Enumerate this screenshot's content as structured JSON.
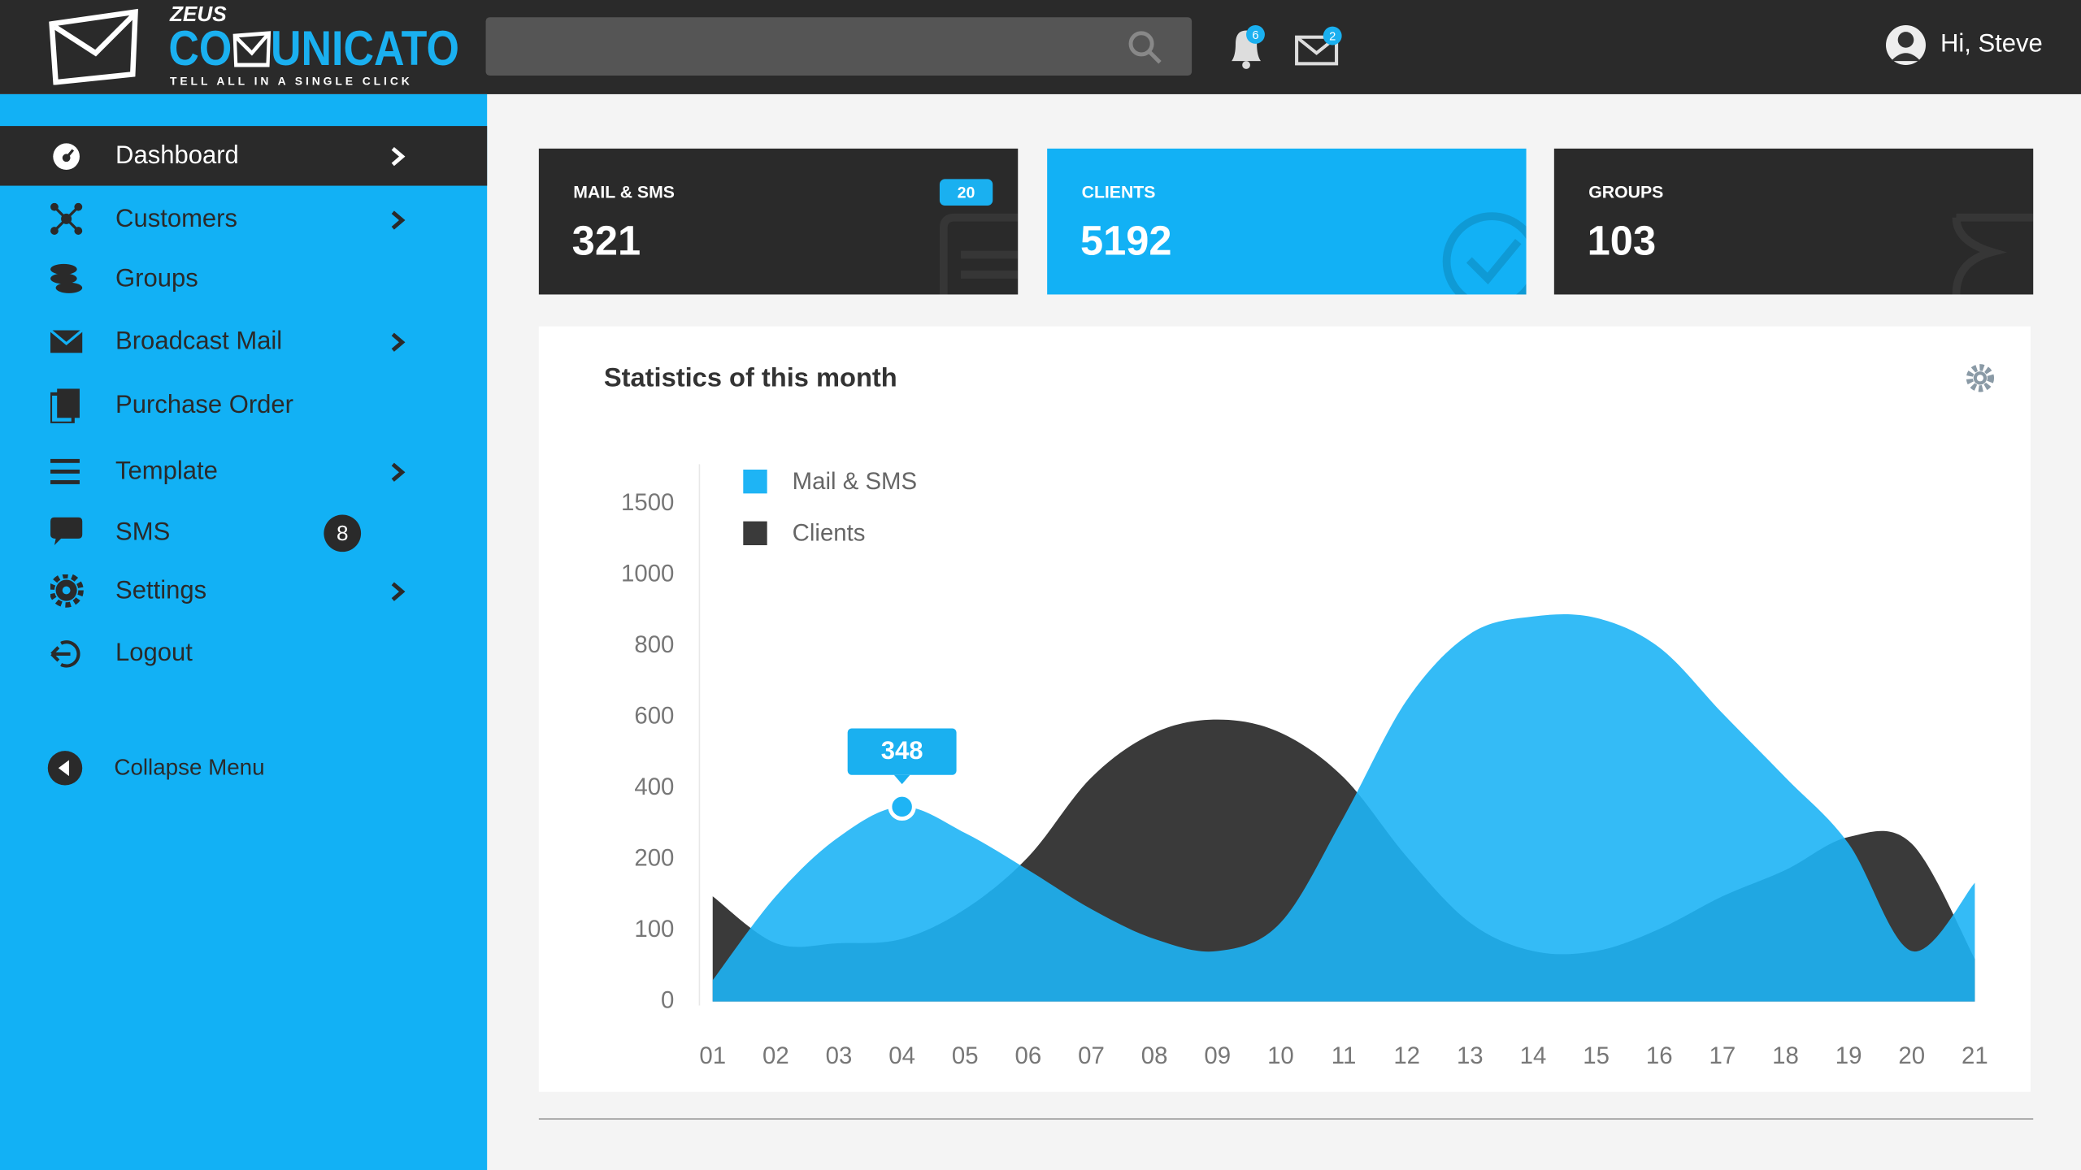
{
  "header": {
    "logo": {
      "prefix": "ZEUS",
      "name_start": "CO",
      "name_end": "UNICATO",
      "tagline": "TELL ALL IN A SINGLE CLICK"
    },
    "notifications": 6,
    "messages": 2,
    "greeting": "Hi, Steve"
  },
  "sidebar": {
    "items": [
      {
        "label": "Dashboard",
        "active": true,
        "submenu": true
      },
      {
        "label": "Customers",
        "submenu": true
      },
      {
        "label": "Groups"
      },
      {
        "label": "Broadcast Mail",
        "submenu": true
      },
      {
        "label": "Purchase Order"
      },
      {
        "label": "Template",
        "submenu": true
      },
      {
        "label": "SMS",
        "badge": 8
      },
      {
        "label": "Settings",
        "submenu": true
      },
      {
        "label": "Logout"
      }
    ],
    "collapse": "Collapse Menu"
  },
  "cards": [
    {
      "label": "MAIL & SMS",
      "value": 321,
      "badge": 20,
      "color": "#2a2a2a"
    },
    {
      "label": "CLIENTS",
      "value": 5192,
      "color": "#12b1f5"
    },
    {
      "label": "GROUPS",
      "value": 103,
      "color": "#2a2a2a"
    }
  ],
  "chart_data": {
    "type": "area",
    "title": "Statistics of this month",
    "categories": [
      "01",
      "02",
      "03",
      "04",
      "05",
      "06",
      "07",
      "08",
      "09",
      "10",
      "11",
      "12",
      "13",
      "14",
      "15",
      "16",
      "17",
      "18",
      "19",
      "20",
      "21"
    ],
    "series": [
      {
        "name": "Clients",
        "color": "#3a3a3a",
        "values": [
          148,
          82,
          82,
          88,
          130,
          207,
          430,
          556,
          593,
          556,
          430,
          207,
          111,
          71,
          71,
          102,
          148,
          185,
          263,
          244,
          60
        ]
      },
      {
        "name": "Mail & SMS",
        "color": "#1eb4f5",
        "values": [
          30,
          148,
          263,
          348,
          274,
          185,
          130,
          88,
          71,
          111,
          319,
          648,
          834,
          883,
          879,
          796,
          611,
          430,
          244,
          71,
          167
        ]
      }
    ],
    "ylim": [
      0,
      1500
    ],
    "yticks": [
      0,
      100,
      200,
      400,
      600,
      800,
      1000,
      1500
    ]
  }
}
